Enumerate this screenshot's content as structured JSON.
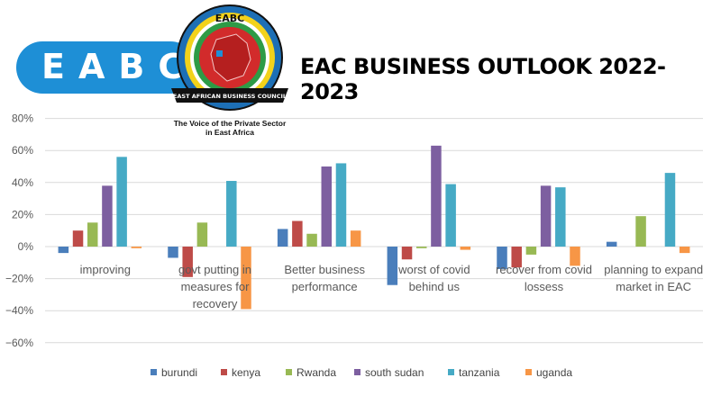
{
  "header": {
    "logo_text": "EABC",
    "seal_top": "EABC",
    "seal_banner": "EAST AFRICAN BUSINESS COUNCIL",
    "tagline_line1": "The Voice of the Private Sector",
    "tagline_line2": "in East Africa",
    "title": "EAC BUSINESS OUTLOOK 2022-2023"
  },
  "colors": {
    "burundi": "#4a7ebb",
    "kenya": "#be4b48",
    "Rwanda": "#98b954",
    "south sudan": "#7d5fa0",
    "tanzania": "#46aac5",
    "uganda": "#f79646",
    "brand_blue": "#1e8fd6"
  },
  "chart_data": {
    "type": "bar",
    "categories": [
      [
        "improving"
      ],
      [
        "govt putting in",
        "measures for",
        "recovery"
      ],
      [
        "Better business",
        "performance"
      ],
      [
        "worst of covid",
        "behind us"
      ],
      [
        "recover from covid",
        "lossess"
      ],
      [
        "planning to expand",
        "market in EAC"
      ]
    ],
    "series": [
      {
        "name": "burundi",
        "values": [
          -4,
          -7,
          11,
          -24,
          -14,
          3
        ]
      },
      {
        "name": "kenya",
        "values": [
          10,
          -19,
          16,
          -8,
          -13,
          0
        ]
      },
      {
        "name": "Rwanda",
        "values": [
          15,
          15,
          8,
          -1,
          -5,
          19
        ]
      },
      {
        "name": "south sudan",
        "values": [
          38,
          0,
          50,
          63,
          38,
          0
        ]
      },
      {
        "name": "tanzania",
        "values": [
          56,
          41,
          52,
          39,
          37,
          46
        ]
      },
      {
        "name": "uganda",
        "values": [
          -1,
          -39,
          10,
          -2,
          -12,
          -4
        ]
      }
    ],
    "yticks": [
      "80%",
      "60%",
      "40%",
      "20%",
      "0%",
      "−20%",
      "−40%",
      "−60%"
    ],
    "ylim": [
      -60,
      80
    ],
    "grid": true,
    "legend_position": "bottom"
  }
}
